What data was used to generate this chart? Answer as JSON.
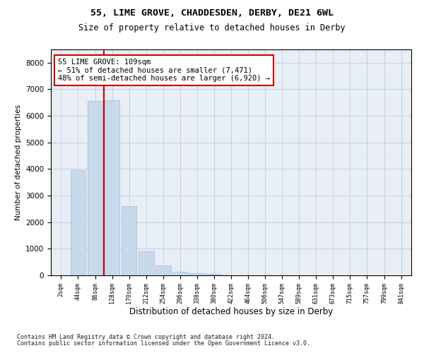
{
  "title_line1": "55, LIME GROVE, CHADDESDEN, DERBY, DE21 6WL",
  "title_line2": "Size of property relative to detached houses in Derby",
  "xlabel": "Distribution of detached houses by size in Derby",
  "ylabel": "Number of detached properties",
  "footnote1": "Contains HM Land Registry data © Crown copyright and database right 2024.",
  "footnote2": "Contains public sector information licensed under the Open Government Licence v3.0.",
  "annotation_line1": "55 LIME GROVE: 109sqm",
  "annotation_line2": "← 51% of detached houses are smaller (7,471)",
  "annotation_line3": "48% of semi-detached houses are larger (6,920) →",
  "bar_color": "#c9d9ec",
  "bar_edge_color": "#a0b8d8",
  "vline_color": "#cc0000",
  "grid_color": "#c8d0dc",
  "background_color": "#e8eef5",
  "tick_labels": [
    "2sqm",
    "44sqm",
    "86sqm",
    "128sqm",
    "170sqm",
    "212sqm",
    "254sqm",
    "296sqm",
    "338sqm",
    "380sqm",
    "422sqm",
    "464sqm",
    "506sqm",
    "547sqm",
    "589sqm",
    "631sqm",
    "673sqm",
    "715sqm",
    "757sqm",
    "799sqm",
    "841sqm"
  ],
  "bar_values": [
    10,
    3950,
    6550,
    6600,
    2600,
    900,
    380,
    130,
    90,
    60,
    0,
    0,
    0,
    0,
    0,
    0,
    0,
    0,
    0,
    0,
    0
  ],
  "vline_x": 2.5,
  "ylim": [
    0,
    8500
  ],
  "yticks": [
    0,
    1000,
    2000,
    3000,
    4000,
    5000,
    6000,
    7000,
    8000
  ]
}
